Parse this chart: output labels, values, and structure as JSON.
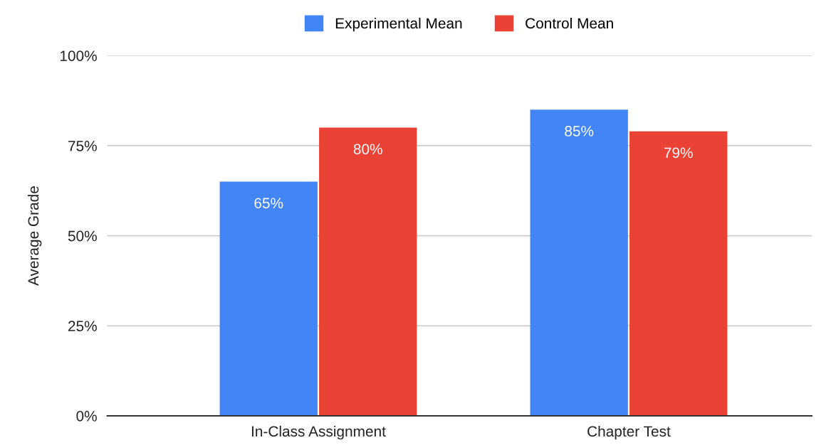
{
  "chart_data": {
    "type": "bar",
    "ylabel": "Average Grade",
    "categories": [
      "In-Class Assignment",
      "Chapter Test"
    ],
    "series": [
      {
        "name": "Experimental Mean",
        "color": "#4285f4",
        "values": [
          65,
          85
        ],
        "value_labels": [
          "65%",
          "85%"
        ]
      },
      {
        "name": "Control Mean",
        "color": "#ea4335",
        "values": [
          80,
          79
        ],
        "value_labels": [
          "80%",
          "79%"
        ]
      }
    ],
    "ylim": [
      0,
      100
    ],
    "yticks": [
      {
        "value": 0,
        "label": "0%"
      },
      {
        "value": 25,
        "label": "25%"
      },
      {
        "value": 50,
        "label": "50%"
      },
      {
        "value": 75,
        "label": "75%"
      },
      {
        "value": 100,
        "label": "100%"
      }
    ],
    "grid": "y",
    "legend": "top"
  }
}
